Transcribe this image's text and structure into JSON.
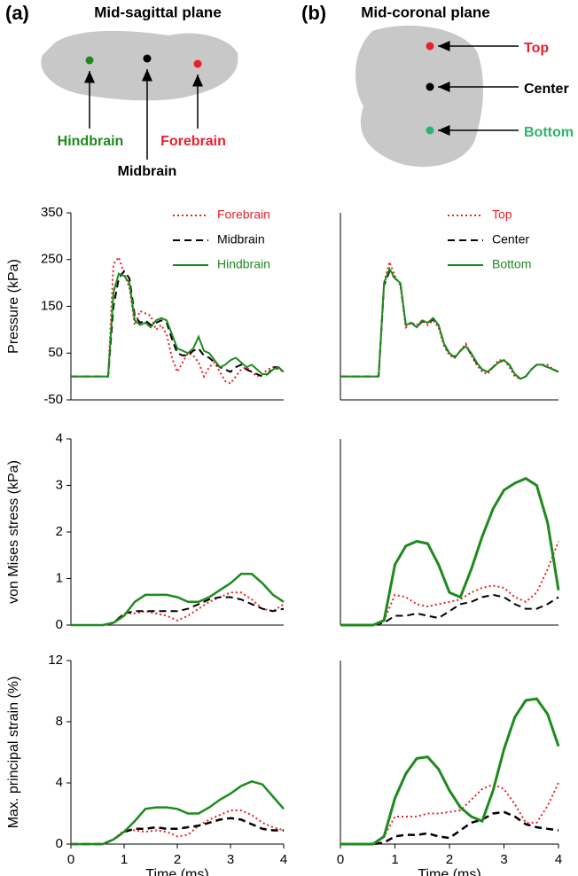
{
  "panels": [
    {
      "label": "(a)",
      "title": "Mid-sagittal plane",
      "points": [
        "Hindbrain",
        "Midbrain",
        "Forebrain"
      ]
    },
    {
      "label": "(b)",
      "title": "Mid-coronal plane",
      "points": [
        "Top",
        "Center",
        "Bottom"
      ]
    }
  ],
  "chart_data": [
    {
      "type": "line",
      "ylabel": "Pressure (kPa)",
      "legend": "upper right",
      "x": [
        0,
        0.1,
        0.2,
        0.3,
        0.4,
        0.5,
        0.6,
        0.7,
        0.8,
        0.9,
        1,
        1.1,
        1.2,
        1.3,
        1.4,
        1.5,
        1.6,
        1.7,
        1.8,
        1.9,
        2,
        2.1,
        2.2,
        2.3,
        2.4,
        2.5,
        2.6,
        2.7,
        2.8,
        2.9,
        3,
        3.1,
        3.2,
        3.3,
        3.4,
        3.5,
        3.6,
        3.7,
        3.8,
        3.9,
        4
      ],
      "xlim": [
        0,
        4
      ],
      "ylim": [
        -50,
        350
      ],
      "yticks": [
        -50,
        50,
        150,
        250,
        350
      ],
      "series": [
        {
          "name": "Forebrain",
          "color": "#e8202a",
          "dash": "dotted",
          "width": 2,
          "values": [
            0,
            0,
            0,
            0,
            0,
            0,
            0,
            0,
            240,
            255,
            220,
            190,
            110,
            140,
            135,
            130,
            100,
            110,
            90,
            40,
            10,
            30,
            50,
            45,
            30,
            0,
            20,
            30,
            10,
            -10,
            -15,
            0,
            15,
            20,
            10,
            0,
            5,
            15,
            20,
            15,
            10
          ]
        },
        {
          "name": "Midbrain",
          "color": "#000000",
          "dash": "dashed",
          "width": 2,
          "values": [
            0,
            0,
            0,
            0,
            0,
            0,
            0,
            0,
            150,
            210,
            225,
            210,
            130,
            115,
            120,
            110,
            115,
            120,
            115,
            80,
            50,
            45,
            45,
            55,
            60,
            45,
            40,
            30,
            20,
            15,
            10,
            20,
            25,
            15,
            10,
            5,
            0,
            5,
            20,
            20,
            10
          ]
        },
        {
          "name": "Hindbrain",
          "color": "#1e8a1e",
          "dash": "solid",
          "width": 2,
          "values": [
            0,
            0,
            0,
            0,
            0,
            0,
            0,
            0,
            180,
            220,
            215,
            200,
            120,
            110,
            115,
            105,
            120,
            125,
            120,
            90,
            60,
            55,
            50,
            60,
            85,
            55,
            50,
            35,
            20,
            25,
            35,
            40,
            30,
            20,
            25,
            15,
            5,
            5,
            15,
            20,
            10
          ]
        }
      ]
    },
    {
      "type": "line",
      "legend": "upper right",
      "x": [
        0,
        0.1,
        0.2,
        0.3,
        0.4,
        0.5,
        0.6,
        0.7,
        0.8,
        0.9,
        1,
        1.1,
        1.2,
        1.3,
        1.4,
        1.5,
        1.6,
        1.7,
        1.8,
        1.9,
        2,
        2.1,
        2.2,
        2.3,
        2.4,
        2.5,
        2.6,
        2.7,
        2.8,
        2.9,
        3,
        3.1,
        3.2,
        3.3,
        3.4,
        3.5,
        3.6,
        3.7,
        3.8,
        3.9,
        4
      ],
      "xlim": [
        0,
        4
      ],
      "ylim": [
        -50,
        350
      ],
      "series": [
        {
          "name": "Top",
          "color": "#e8202a",
          "dash": "dotted",
          "width": 2,
          "values": [
            0,
            0,
            0,
            0,
            0,
            0,
            0,
            0,
            200,
            245,
            215,
            195,
            105,
            115,
            110,
            120,
            110,
            120,
            105,
            65,
            45,
            40,
            55,
            70,
            45,
            25,
            10,
            5,
            20,
            35,
            35,
            20,
            0,
            -5,
            0,
            15,
            25,
            25,
            25,
            15,
            10
          ]
        },
        {
          "name": "Center",
          "color": "#000000",
          "dash": "dashed",
          "width": 2,
          "values": [
            0,
            0,
            0,
            0,
            0,
            0,
            0,
            0,
            195,
            225,
            210,
            200,
            110,
            115,
            105,
            118,
            115,
            122,
            110,
            70,
            48,
            42,
            55,
            65,
            48,
            28,
            15,
            10,
            20,
            30,
            35,
            25,
            5,
            -5,
            0,
            15,
            25,
            25,
            20,
            15,
            10
          ]
        },
        {
          "name": "Bottom",
          "color": "#1e8a1e",
          "dash": "solid",
          "width": 2,
          "values": [
            0,
            0,
            0,
            0,
            0,
            0,
            0,
            0,
            200,
            230,
            210,
            200,
            110,
            115,
            105,
            120,
            115,
            125,
            110,
            70,
            50,
            40,
            55,
            65,
            50,
            30,
            15,
            10,
            20,
            30,
            35,
            25,
            5,
            -5,
            0,
            15,
            25,
            25,
            20,
            15,
            10
          ]
        }
      ]
    },
    {
      "type": "line",
      "ylabel": "von Mises stress (kPa)",
      "x": [
        0,
        0.2,
        0.4,
        0.6,
        0.8,
        1,
        1.2,
        1.4,
        1.6,
        1.8,
        2,
        2.2,
        2.4,
        2.6,
        2.8,
        3,
        3.2,
        3.4,
        3.6,
        3.8,
        4
      ],
      "xlim": [
        0,
        4
      ],
      "ylim": [
        0,
        4
      ],
      "yticks": [
        0,
        1,
        2,
        3,
        4
      ],
      "series": [
        {
          "color": "#e8202a",
          "dash": "dotted",
          "width": 2,
          "values": [
            0,
            0,
            0,
            0,
            0.05,
            0.25,
            0.25,
            0.3,
            0.25,
            0.2,
            0.1,
            0.2,
            0.35,
            0.5,
            0.6,
            0.7,
            0.7,
            0.55,
            0.35,
            0.3,
            0.45
          ]
        },
        {
          "color": "#000000",
          "dash": "dashed",
          "width": 2,
          "values": [
            0,
            0,
            0,
            0,
            0.05,
            0.25,
            0.3,
            0.3,
            0.3,
            0.3,
            0.3,
            0.35,
            0.45,
            0.55,
            0.6,
            0.6,
            0.55,
            0.45,
            0.35,
            0.3,
            0.35
          ]
        },
        {
          "color": "#1e8a1e",
          "dash": "solid",
          "width": 2.5,
          "values": [
            0,
            0,
            0,
            0,
            0.05,
            0.2,
            0.5,
            0.65,
            0.65,
            0.65,
            0.6,
            0.5,
            0.5,
            0.6,
            0.75,
            0.9,
            1.1,
            1.1,
            0.9,
            0.65,
            0.5
          ]
        }
      ]
    },
    {
      "type": "line",
      "x": [
        0,
        0.2,
        0.4,
        0.6,
        0.8,
        1,
        1.2,
        1.4,
        1.6,
        1.8,
        2,
        2.2,
        2.4,
        2.6,
        2.8,
        3,
        3.2,
        3.4,
        3.6,
        3.8,
        4
      ],
      "xlim": [
        0,
        4
      ],
      "ylim": [
        0,
        4
      ],
      "series": [
        {
          "color": "#e8202a",
          "dash": "dotted",
          "width": 2,
          "values": [
            0,
            0,
            0,
            0,
            0.1,
            0.65,
            0.6,
            0.45,
            0.4,
            0.45,
            0.5,
            0.55,
            0.7,
            0.8,
            0.85,
            0.8,
            0.6,
            0.5,
            0.7,
            1.2,
            1.8
          ]
        },
        {
          "color": "#000000",
          "dash": "dashed",
          "width": 2,
          "values": [
            0,
            0,
            0,
            0,
            0.05,
            0.2,
            0.2,
            0.25,
            0.2,
            0.15,
            0.3,
            0.45,
            0.5,
            0.6,
            0.65,
            0.6,
            0.45,
            0.35,
            0.35,
            0.45,
            0.6
          ]
        },
        {
          "color": "#1e8a1e",
          "dash": "solid",
          "width": 3,
          "values": [
            0,
            0,
            0,
            0,
            0.1,
            1.3,
            1.7,
            1.8,
            1.75,
            1.3,
            0.7,
            0.6,
            1.2,
            1.9,
            2.5,
            2.9,
            3.05,
            3.15,
            3,
            2.2,
            0.75
          ]
        }
      ]
    },
    {
      "type": "line",
      "ylabel": "Max. principal strain (%)",
      "xlabel": "Time (ms)",
      "x": [
        0,
        0.2,
        0.4,
        0.6,
        0.8,
        1,
        1.2,
        1.4,
        1.6,
        1.8,
        2,
        2.2,
        2.4,
        2.6,
        2.8,
        3,
        3.2,
        3.4,
        3.6,
        3.8,
        4
      ],
      "xlim": [
        0,
        4
      ],
      "ylim": [
        0,
        12
      ],
      "xticks": [
        0,
        1,
        2,
        3,
        4
      ],
      "yticks": [
        0,
        4,
        8,
        12
      ],
      "series": [
        {
          "color": "#e8202a",
          "dash": "dotted",
          "width": 2,
          "values": [
            0,
            0,
            0,
            0,
            0.3,
            0.9,
            0.9,
            0.8,
            0.9,
            0.8,
            0.5,
            0.6,
            1.2,
            1.6,
            1.9,
            2.2,
            2.2,
            1.9,
            1.4,
            1.1,
            0.9
          ]
        },
        {
          "color": "#000000",
          "dash": "dashed",
          "width": 2.5,
          "values": [
            0,
            0,
            0,
            0,
            0.3,
            0.8,
            1,
            1,
            1.1,
            1,
            1,
            1.1,
            1.2,
            1.4,
            1.6,
            1.7,
            1.6,
            1.3,
            1,
            0.9,
            0.9
          ]
        },
        {
          "color": "#1e8a1e",
          "dash": "solid",
          "width": 2.5,
          "values": [
            0,
            0,
            0,
            0,
            0.3,
            0.8,
            1.5,
            2.3,
            2.4,
            2.4,
            2.3,
            2,
            2,
            2.4,
            2.9,
            3.3,
            3.8,
            4.1,
            3.9,
            3.1,
            2.3
          ]
        }
      ]
    },
    {
      "type": "line",
      "xlabel": "Time (ms)",
      "x": [
        0,
        0.2,
        0.4,
        0.6,
        0.8,
        1,
        1.2,
        1.4,
        1.6,
        1.8,
        2,
        2.2,
        2.4,
        2.6,
        2.8,
        3,
        3.2,
        3.4,
        3.6,
        3.8,
        4
      ],
      "xlim": [
        0,
        4
      ],
      "ylim": [
        0,
        12
      ],
      "xticks": [
        0,
        1,
        2,
        3,
        4
      ],
      "series": [
        {
          "color": "#e8202a",
          "dash": "dotted",
          "width": 2,
          "values": [
            0,
            0,
            0,
            0,
            0.5,
            1.8,
            1.8,
            1.8,
            2,
            2,
            2.1,
            2.2,
            2.9,
            3.6,
            3.9,
            3.6,
            2.6,
            1.4,
            1.4,
            2.5,
            4
          ]
        },
        {
          "color": "#000000",
          "dash": "dashed",
          "width": 2.5,
          "values": [
            0,
            0,
            0,
            0,
            0.1,
            0.5,
            0.6,
            0.6,
            0.7,
            0.5,
            0.4,
            0.9,
            1.4,
            1.6,
            2,
            2.1,
            1.8,
            1.3,
            1.1,
            1,
            0.9
          ]
        },
        {
          "color": "#1e8a1e",
          "dash": "solid",
          "width": 3,
          "values": [
            0,
            0,
            0,
            0,
            0.5,
            3,
            4.6,
            5.6,
            5.7,
            4.9,
            3.5,
            2.4,
            1.8,
            1.5,
            3.5,
            6.2,
            8.3,
            9.4,
            9.5,
            8.5,
            6.4
          ]
        }
      ]
    }
  ]
}
